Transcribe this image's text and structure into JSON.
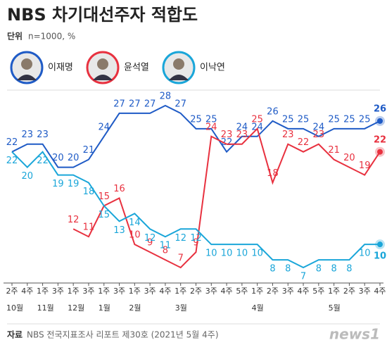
{
  "chart_data": {
    "type": "line",
    "title": "NBS 차기대선주자 적합도",
    "subtitle_label": "단위",
    "subtitle": "n=1000, %",
    "source_label": "자료",
    "source": "NBS 전국지표조사 리포트 제30호 (2021년 5월 4주)",
    "logo": "news1",
    "categories": [
      "2주",
      "4주",
      "1주",
      "3주",
      "1주",
      "3주",
      "1주",
      "3주",
      "1주",
      "3주",
      "4주",
      "1주",
      "2주",
      "3주",
      "4주",
      "5주",
      "1주",
      "2주",
      "3주",
      "4주",
      "5주",
      "1주",
      "2주",
      "3주",
      "4주"
    ],
    "month_labels": [
      "10월",
      null,
      "11월",
      null,
      "12월",
      null,
      "1월",
      null,
      "2월",
      null,
      null,
      "3월",
      null,
      null,
      null,
      null,
      "4월",
      null,
      null,
      null,
      null,
      "5월",
      null,
      null,
      null
    ],
    "ylim": [
      6,
      29
    ],
    "series": [
      {
        "name": "이재명",
        "color": "#1f5bc6",
        "label_pos": "above",
        "values": [
          22,
          23,
          23,
          20,
          20,
          21,
          24,
          27,
          27,
          27,
          28,
          27,
          25,
          25,
          22,
          24,
          24,
          26,
          25,
          25,
          24,
          25,
          25,
          25,
          26
        ]
      },
      {
        "name": "윤석열",
        "color": "#e8313f",
        "label_pos": "above",
        "values": [
          null,
          null,
          null,
          null,
          12,
          11,
          15,
          16,
          10,
          9,
          8,
          7,
          9,
          24,
          23,
          23,
          25,
          18,
          23,
          22,
          23,
          21,
          20,
          19,
          22
        ]
      },
      {
        "name": "이낙연",
        "color": "#1aa6d9",
        "label_pos": "below",
        "values": [
          22,
          20,
          22,
          19,
          19,
          18,
          15,
          13,
          14,
          12,
          11,
          12,
          12,
          10,
          10,
          10,
          10,
          8,
          8,
          7,
          8,
          8,
          8,
          10,
          10
        ]
      }
    ]
  }
}
